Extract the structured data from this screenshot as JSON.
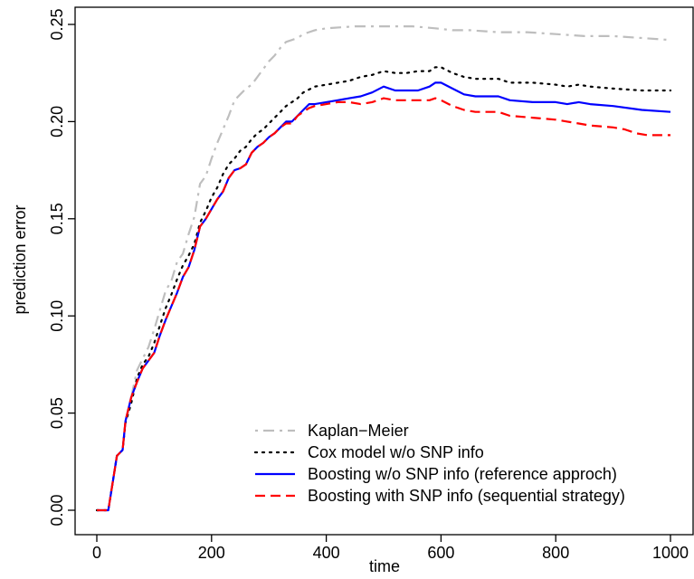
{
  "chart_data": {
    "type": "line",
    "xlabel": "time",
    "ylabel": "prediction error",
    "xlim": [
      0,
      1000
    ],
    "ylim": [
      0,
      0.25
    ],
    "xticks": [
      "0",
      "200",
      "400",
      "600",
      "800",
      "1000"
    ],
    "yticks": [
      "0.00",
      "0.05",
      "0.10",
      "0.15",
      "0.20",
      "0.25"
    ],
    "grid": false,
    "legend_position": "bottom-right",
    "series": [
      {
        "name": "Kaplan−Meier",
        "color": "#bebebe",
        "dash": "dotdash",
        "points": [
          [
            0,
            0
          ],
          [
            20,
            0
          ],
          [
            35,
            0.028
          ],
          [
            45,
            0.031
          ],
          [
            50,
            0.045
          ],
          [
            60,
            0.058
          ],
          [
            70,
            0.072
          ],
          [
            80,
            0.078
          ],
          [
            90,
            0.084
          ],
          [
            100,
            0.093
          ],
          [
            110,
            0.103
          ],
          [
            120,
            0.113
          ],
          [
            130,
            0.118
          ],
          [
            140,
            0.128
          ],
          [
            150,
            0.132
          ],
          [
            160,
            0.142
          ],
          [
            170,
            0.151
          ],
          [
            180,
            0.168
          ],
          [
            190,
            0.172
          ],
          [
            200,
            0.181
          ],
          [
            210,
            0.189
          ],
          [
            220,
            0.196
          ],
          [
            230,
            0.203
          ],
          [
            240,
            0.211
          ],
          [
            250,
            0.214
          ],
          [
            260,
            0.217
          ],
          [
            270,
            0.219
          ],
          [
            280,
            0.223
          ],
          [
            290,
            0.227
          ],
          [
            300,
            0.231
          ],
          [
            310,
            0.234
          ],
          [
            320,
            0.238
          ],
          [
            330,
            0.241
          ],
          [
            340,
            0.242
          ],
          [
            350,
            0.243
          ],
          [
            360,
            0.245
          ],
          [
            380,
            0.247
          ],
          [
            400,
            0.248
          ],
          [
            450,
            0.249
          ],
          [
            500,
            0.249
          ],
          [
            550,
            0.249
          ],
          [
            590,
            0.248
          ],
          [
            620,
            0.247
          ],
          [
            650,
            0.247
          ],
          [
            700,
            0.246
          ],
          [
            750,
            0.246
          ],
          [
            800,
            0.245
          ],
          [
            850,
            0.244
          ],
          [
            900,
            0.244
          ],
          [
            950,
            0.243
          ],
          [
            1000,
            0.242
          ]
        ]
      },
      {
        "name": "Cox model w/o SNP info",
        "color": "#000000",
        "dash": "dotted",
        "points": [
          [
            0,
            0
          ],
          [
            20,
            0
          ],
          [
            35,
            0.028
          ],
          [
            45,
            0.031
          ],
          [
            50,
            0.045
          ],
          [
            60,
            0.055
          ],
          [
            70,
            0.068
          ],
          [
            80,
            0.075
          ],
          [
            90,
            0.079
          ],
          [
            100,
            0.086
          ],
          [
            110,
            0.095
          ],
          [
            120,
            0.104
          ],
          [
            130,
            0.111
          ],
          [
            140,
            0.119
          ],
          [
            150,
            0.126
          ],
          [
            160,
            0.131
          ],
          [
            170,
            0.137
          ],
          [
            180,
            0.148
          ],
          [
            190,
            0.154
          ],
          [
            200,
            0.161
          ],
          [
            210,
            0.166
          ],
          [
            220,
            0.173
          ],
          [
            230,
            0.178
          ],
          [
            240,
            0.181
          ],
          [
            250,
            0.185
          ],
          [
            260,
            0.187
          ],
          [
            270,
            0.191
          ],
          [
            280,
            0.194
          ],
          [
            290,
            0.196
          ],
          [
            300,
            0.199
          ],
          [
            310,
            0.202
          ],
          [
            320,
            0.205
          ],
          [
            330,
            0.208
          ],
          [
            340,
            0.21
          ],
          [
            350,
            0.212
          ],
          [
            360,
            0.215
          ],
          [
            380,
            0.218
          ],
          [
            400,
            0.219
          ],
          [
            420,
            0.22
          ],
          [
            440,
            0.221
          ],
          [
            460,
            0.223
          ],
          [
            480,
            0.224
          ],
          [
            500,
            0.226
          ],
          [
            520,
            0.225
          ],
          [
            540,
            0.225
          ],
          [
            560,
            0.226
          ],
          [
            580,
            0.226
          ],
          [
            590,
            0.228
          ],
          [
            600,
            0.228
          ],
          [
            620,
            0.225
          ],
          [
            640,
            0.223
          ],
          [
            660,
            0.222
          ],
          [
            700,
            0.222
          ],
          [
            720,
            0.22
          ],
          [
            760,
            0.22
          ],
          [
            800,
            0.219
          ],
          [
            820,
            0.218
          ],
          [
            840,
            0.219
          ],
          [
            860,
            0.218
          ],
          [
            900,
            0.217
          ],
          [
            950,
            0.216
          ],
          [
            1000,
            0.216
          ]
        ]
      },
      {
        "name": "Boosting w/o SNP info (reference approch)",
        "color": "#0000ff",
        "dash": "solid",
        "points": [
          [
            0,
            0
          ],
          [
            20,
            0
          ],
          [
            35,
            0.028
          ],
          [
            45,
            0.031
          ],
          [
            50,
            0.046
          ],
          [
            60,
            0.058
          ],
          [
            70,
            0.066
          ],
          [
            80,
            0.073
          ],
          [
            90,
            0.077
          ],
          [
            100,
            0.081
          ],
          [
            110,
            0.09
          ],
          [
            120,
            0.098
          ],
          [
            130,
            0.105
          ],
          [
            140,
            0.112
          ],
          [
            150,
            0.12
          ],
          [
            160,
            0.125
          ],
          [
            170,
            0.134
          ],
          [
            180,
            0.146
          ],
          [
            190,
            0.15
          ],
          [
            200,
            0.155
          ],
          [
            210,
            0.16
          ],
          [
            220,
            0.164
          ],
          [
            230,
            0.171
          ],
          [
            240,
            0.175
          ],
          [
            250,
            0.176
          ],
          [
            260,
            0.178
          ],
          [
            270,
            0.184
          ],
          [
            280,
            0.187
          ],
          [
            290,
            0.189
          ],
          [
            300,
            0.192
          ],
          [
            310,
            0.194
          ],
          [
            320,
            0.197
          ],
          [
            330,
            0.2
          ],
          [
            340,
            0.2
          ],
          [
            350,
            0.203
          ],
          [
            360,
            0.206
          ],
          [
            370,
            0.209
          ],
          [
            380,
            0.209
          ],
          [
            400,
            0.21
          ],
          [
            420,
            0.211
          ],
          [
            440,
            0.212
          ],
          [
            460,
            0.213
          ],
          [
            480,
            0.215
          ],
          [
            500,
            0.218
          ],
          [
            520,
            0.216
          ],
          [
            540,
            0.216
          ],
          [
            560,
            0.216
          ],
          [
            580,
            0.218
          ],
          [
            590,
            0.22
          ],
          [
            600,
            0.22
          ],
          [
            620,
            0.217
          ],
          [
            640,
            0.214
          ],
          [
            660,
            0.213
          ],
          [
            700,
            0.213
          ],
          [
            720,
            0.211
          ],
          [
            760,
            0.21
          ],
          [
            800,
            0.21
          ],
          [
            820,
            0.209
          ],
          [
            840,
            0.21
          ],
          [
            860,
            0.209
          ],
          [
            900,
            0.208
          ],
          [
            950,
            0.206
          ],
          [
            1000,
            0.205
          ]
        ]
      },
      {
        "name": "Boosting with SNP info (sequential strategy)",
        "color": "#ff0000",
        "dash": "dashed",
        "points": [
          [
            0,
            0
          ],
          [
            20,
            0
          ],
          [
            35,
            0.028
          ],
          [
            45,
            0.031
          ],
          [
            50,
            0.046
          ],
          [
            60,
            0.058
          ],
          [
            70,
            0.066
          ],
          [
            80,
            0.073
          ],
          [
            90,
            0.077
          ],
          [
            100,
            0.081
          ],
          [
            110,
            0.09
          ],
          [
            120,
            0.098
          ],
          [
            130,
            0.105
          ],
          [
            140,
            0.112
          ],
          [
            150,
            0.12
          ],
          [
            160,
            0.125
          ],
          [
            170,
            0.134
          ],
          [
            180,
            0.146
          ],
          [
            190,
            0.15
          ],
          [
            200,
            0.155
          ],
          [
            210,
            0.16
          ],
          [
            220,
            0.164
          ],
          [
            230,
            0.171
          ],
          [
            240,
            0.175
          ],
          [
            250,
            0.176
          ],
          [
            260,
            0.178
          ],
          [
            270,
            0.184
          ],
          [
            280,
            0.187
          ],
          [
            290,
            0.189
          ],
          [
            300,
            0.192
          ],
          [
            310,
            0.194
          ],
          [
            320,
            0.197
          ],
          [
            330,
            0.199
          ],
          [
            340,
            0.199
          ],
          [
            350,
            0.203
          ],
          [
            360,
            0.205
          ],
          [
            370,
            0.207
          ],
          [
            380,
            0.208
          ],
          [
            400,
            0.209
          ],
          [
            420,
            0.21
          ],
          [
            440,
            0.21
          ],
          [
            460,
            0.209
          ],
          [
            480,
            0.21
          ],
          [
            500,
            0.212
          ],
          [
            520,
            0.211
          ],
          [
            540,
            0.211
          ],
          [
            560,
            0.211
          ],
          [
            580,
            0.211
          ],
          [
            590,
            0.212
          ],
          [
            600,
            0.211
          ],
          [
            620,
            0.208
          ],
          [
            640,
            0.206
          ],
          [
            660,
            0.205
          ],
          [
            700,
            0.205
          ],
          [
            720,
            0.203
          ],
          [
            760,
            0.202
          ],
          [
            800,
            0.201
          ],
          [
            820,
            0.2
          ],
          [
            840,
            0.199
          ],
          [
            860,
            0.198
          ],
          [
            900,
            0.197
          ],
          [
            920,
            0.196
          ],
          [
            940,
            0.194
          ],
          [
            960,
            0.193
          ],
          [
            1000,
            0.193
          ]
        ]
      }
    ]
  }
}
